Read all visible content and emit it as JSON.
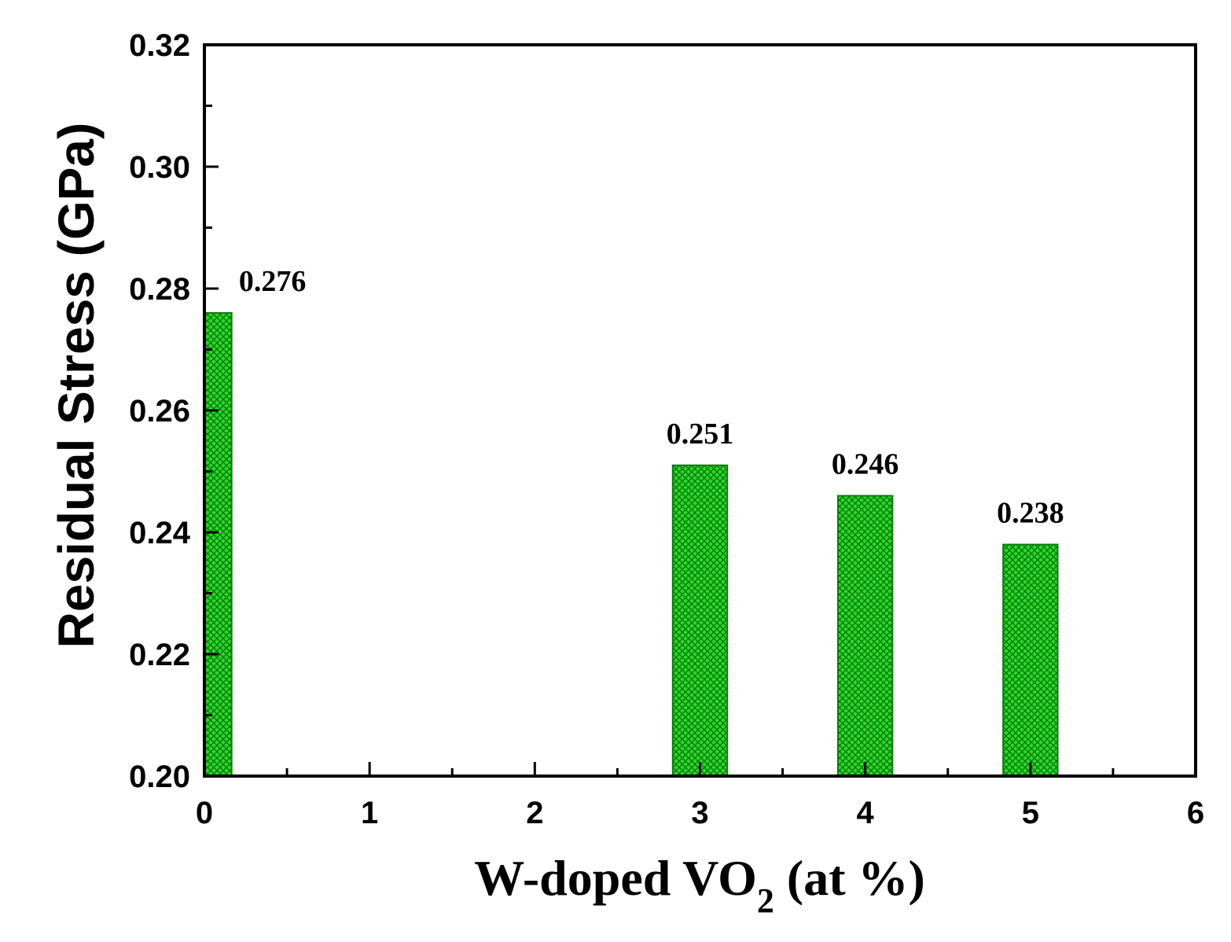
{
  "chart_data": {
    "type": "bar",
    "title": "",
    "xlabel_main": "W-doped VO",
    "xlabel_sub": "2",
    "xlabel_tail": " (at %)",
    "ylabel": "Residual Stress (GPa)",
    "xlim": [
      0,
      6
    ],
    "ylim": [
      0.2,
      0.32
    ],
    "x_ticks": [
      "0",
      "1",
      "2",
      "3",
      "4",
      "5",
      "6"
    ],
    "y_ticks": [
      "0.20",
      "0.22",
      "0.24",
      "0.26",
      "0.28",
      "0.30",
      "0.32"
    ],
    "x_tick_values": [
      0,
      1,
      2,
      3,
      4,
      5,
      6
    ],
    "y_tick_values": [
      0.2,
      0.22,
      0.24,
      0.26,
      0.28,
      0.3,
      0.32
    ],
    "x_minor_tick_values": [
      0.5,
      1.5,
      2.5,
      3.5,
      4.5,
      5.5
    ],
    "y_minor_tick_values": [
      0.21,
      0.23,
      0.25,
      0.27,
      0.29,
      0.31
    ],
    "bar_width": 0.33,
    "bar_fill": "#22dd22",
    "bar_hatch": "#116611",
    "bar_edge": "#0c7a0c",
    "series": [
      {
        "name": "Residual Stress",
        "x": [
          0,
          3,
          4,
          5
        ],
        "values": [
          0.276,
          0.251,
          0.246,
          0.238
        ],
        "labels": [
          "0.276",
          "0.251",
          "0.246",
          "0.238"
        ]
      }
    ]
  }
}
